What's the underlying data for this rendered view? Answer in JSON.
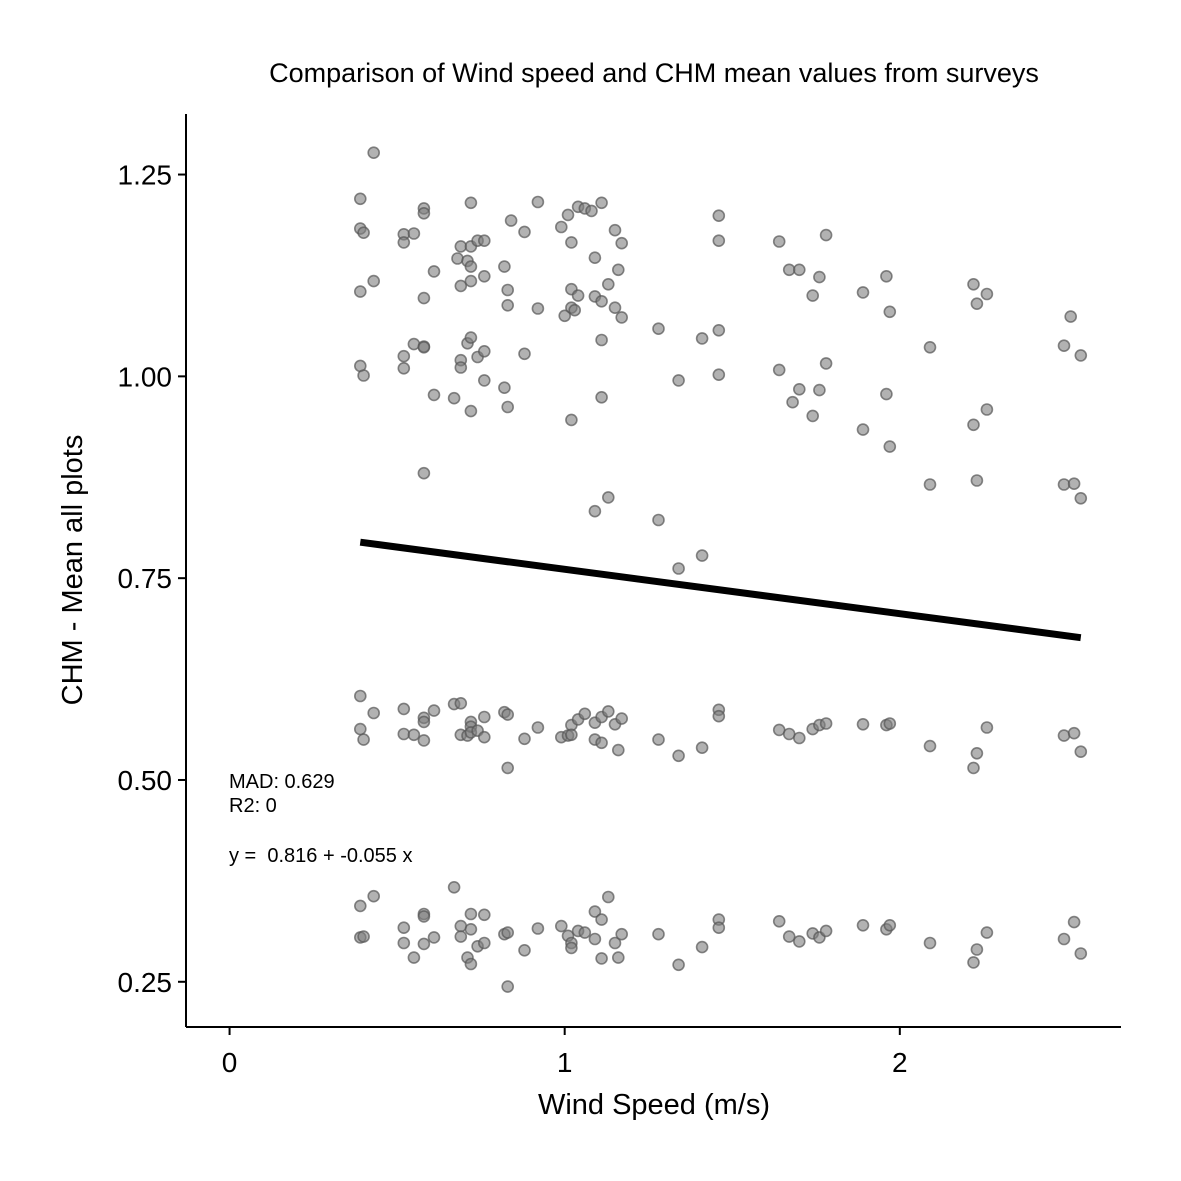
{
  "chart_data": {
    "type": "scatter",
    "title": "Comparison of Wind speed and CHM mean values from surveys",
    "xlabel": "Wind Speed (m/s)",
    "ylabel": "CHM - Mean all plots",
    "xlim": [
      -0.13,
      2.66
    ],
    "ylim": [
      0.194,
      1.325
    ],
    "x_ticks": [
      0,
      1,
      2
    ],
    "x_tick_labels": [
      "0",
      "1",
      "2"
    ],
    "y_ticks": [
      0.25,
      0.5,
      0.75,
      1.0,
      1.25
    ],
    "y_tick_labels": [
      "0.25",
      "0.50",
      "0.75",
      "1.00",
      "1.25"
    ],
    "grid": false,
    "legend": "none",
    "point_color": "#7f7f7f",
    "annotations": {
      "mad": "MAD: 0.629",
      "r2": "R2: 0",
      "equation": "y =  0.816 + -0.055 x"
    },
    "fit_line": {
      "intercept": 0.816,
      "slope": -0.055,
      "x_range": [
        0.39,
        2.54
      ]
    },
    "points": [
      [
        0.39,
        1.22
      ],
      [
        0.39,
        1.183
      ],
      [
        0.4,
        1.178
      ],
      [
        0.39,
        1.105
      ],
      [
        0.43,
        1.277
      ],
      [
        0.43,
        1.118
      ],
      [
        0.52,
        1.176
      ],
      [
        0.52,
        1.166
      ],
      [
        0.55,
        1.177
      ],
      [
        0.58,
        1.208
      ],
      [
        0.58,
        1.202
      ],
      [
        0.58,
        1.097
      ],
      [
        0.61,
        1.13
      ],
      [
        0.68,
        1.146
      ],
      [
        0.69,
        1.161
      ],
      [
        0.69,
        1.112
      ],
      [
        0.72,
        1.215
      ],
      [
        0.71,
        1.143
      ],
      [
        0.72,
        1.136
      ],
      [
        0.72,
        1.161
      ],
      [
        0.72,
        1.118
      ],
      [
        0.74,
        1.168
      ],
      [
        0.76,
        1.168
      ],
      [
        0.76,
        1.124
      ],
      [
        0.82,
        1.136
      ],
      [
        0.83,
        1.107
      ],
      [
        0.83,
        1.088
      ],
      [
        0.84,
        1.193
      ],
      [
        0.88,
        1.179
      ],
      [
        0.92,
        1.216
      ],
      [
        0.92,
        1.084
      ],
      [
        0.99,
        1.185
      ],
      [
        1.01,
        1.2
      ],
      [
        1.02,
        1.166
      ],
      [
        1.02,
        1.108
      ],
      [
        1.04,
        1.1
      ],
      [
        1.04,
        1.21
      ],
      [
        1.06,
        1.208
      ],
      [
        1.08,
        1.205
      ],
      [
        1.09,
        1.147
      ],
      [
        1.09,
        1.099
      ],
      [
        1.11,
        1.215
      ],
      [
        1.11,
        1.093
      ],
      [
        1.13,
        1.114
      ],
      [
        1.15,
        1.181
      ],
      [
        1.15,
        1.085
      ],
      [
        1.16,
        1.132
      ],
      [
        1.17,
        1.165
      ],
      [
        1.17,
        1.073
      ],
      [
        1.0,
        1.075
      ],
      [
        1.02,
        1.085
      ],
      [
        1.03,
        1.082
      ],
      [
        1.46,
        1.199
      ],
      [
        1.46,
        1.168
      ],
      [
        1.64,
        1.167
      ],
      [
        1.67,
        1.132
      ],
      [
        1.7,
        1.132
      ],
      [
        1.74,
        1.1
      ],
      [
        1.76,
        1.123
      ],
      [
        1.78,
        1.175
      ],
      [
        1.89,
        1.104
      ],
      [
        1.96,
        1.124
      ],
      [
        1.97,
        1.08
      ],
      [
        2.22,
        1.114
      ],
      [
        2.23,
        1.09
      ],
      [
        2.26,
        1.102
      ],
      [
        2.51,
        1.074
      ],
      [
        0.39,
        1.013
      ],
      [
        0.4,
        1.001
      ],
      [
        0.52,
        1.025
      ],
      [
        0.52,
        1.01
      ],
      [
        0.55,
        1.04
      ],
      [
        0.58,
        1.037
      ],
      [
        0.58,
        1.036
      ],
      [
        0.61,
        0.977
      ],
      [
        0.67,
        0.973
      ],
      [
        0.69,
        1.02
      ],
      [
        0.69,
        1.011
      ],
      [
        0.71,
        1.041
      ],
      [
        0.72,
        1.048
      ],
      [
        0.72,
        0.957
      ],
      [
        0.74,
        1.024
      ],
      [
        0.76,
        1.031
      ],
      [
        0.76,
        0.995
      ],
      [
        0.82,
        0.986
      ],
      [
        0.83,
        0.962
      ],
      [
        0.88,
        1.028
      ],
      [
        1.02,
        0.946
      ],
      [
        1.11,
        1.045
      ],
      [
        1.11,
        0.974
      ],
      [
        1.28,
        1.059
      ],
      [
        1.34,
        0.995
      ],
      [
        1.41,
        1.047
      ],
      [
        1.46,
        1.057
      ],
      [
        1.46,
        1.002
      ],
      [
        1.64,
        1.008
      ],
      [
        1.68,
        0.968
      ],
      [
        1.7,
        0.984
      ],
      [
        1.74,
        0.951
      ],
      [
        1.76,
        0.983
      ],
      [
        1.78,
        1.016
      ],
      [
        1.89,
        0.934
      ],
      [
        1.96,
        0.978
      ],
      [
        1.97,
        0.913
      ],
      [
        2.09,
        1.036
      ],
      [
        2.22,
        0.94
      ],
      [
        2.26,
        0.959
      ],
      [
        2.49,
        1.038
      ],
      [
        2.54,
        1.026
      ],
      [
        0.58,
        0.88
      ],
      [
        1.09,
        0.833
      ],
      [
        1.13,
        0.85
      ],
      [
        1.28,
        0.822
      ],
      [
        1.34,
        0.762
      ],
      [
        1.41,
        0.778
      ],
      [
        2.09,
        0.866
      ],
      [
        2.23,
        0.871
      ],
      [
        2.49,
        0.866
      ],
      [
        2.52,
        0.867
      ],
      [
        2.54,
        0.849
      ],
      [
        0.39,
        0.604
      ],
      [
        0.39,
        0.563
      ],
      [
        0.4,
        0.55
      ],
      [
        0.43,
        0.583
      ],
      [
        0.52,
        0.588
      ],
      [
        0.52,
        0.557
      ],
      [
        0.55,
        0.556
      ],
      [
        0.58,
        0.577
      ],
      [
        0.58,
        0.572
      ],
      [
        0.58,
        0.549
      ],
      [
        0.61,
        0.586
      ],
      [
        0.67,
        0.594
      ],
      [
        0.69,
        0.595
      ],
      [
        0.69,
        0.556
      ],
      [
        0.71,
        0.555
      ],
      [
        0.72,
        0.572
      ],
      [
        0.72,
        0.566
      ],
      [
        0.72,
        0.559
      ],
      [
        0.74,
        0.561
      ],
      [
        0.76,
        0.578
      ],
      [
        0.76,
        0.553
      ],
      [
        0.82,
        0.584
      ],
      [
        0.83,
        0.581
      ],
      [
        0.83,
        0.515
      ],
      [
        0.88,
        0.551
      ],
      [
        0.92,
        0.565
      ],
      [
        0.99,
        0.553
      ],
      [
        1.01,
        0.555
      ],
      [
        1.02,
        0.568
      ],
      [
        1.02,
        0.556
      ],
      [
        1.04,
        0.575
      ],
      [
        1.06,
        0.582
      ],
      [
        1.09,
        0.571
      ],
      [
        1.09,
        0.55
      ],
      [
        1.11,
        0.578
      ],
      [
        1.11,
        0.546
      ],
      [
        1.13,
        0.585
      ],
      [
        1.15,
        0.569
      ],
      [
        1.16,
        0.537
      ],
      [
        1.17,
        0.576
      ],
      [
        1.28,
        0.55
      ],
      [
        1.34,
        0.53
      ],
      [
        1.41,
        0.54
      ],
      [
        1.46,
        0.587
      ],
      [
        1.46,
        0.579
      ],
      [
        1.64,
        0.562
      ],
      [
        1.67,
        0.557
      ],
      [
        1.7,
        0.552
      ],
      [
        1.74,
        0.563
      ],
      [
        1.76,
        0.568
      ],
      [
        1.78,
        0.57
      ],
      [
        1.89,
        0.569
      ],
      [
        1.96,
        0.568
      ],
      [
        1.97,
        0.57
      ],
      [
        2.09,
        0.542
      ],
      [
        2.22,
        0.515
      ],
      [
        2.23,
        0.533
      ],
      [
        2.26,
        0.565
      ],
      [
        2.49,
        0.555
      ],
      [
        2.52,
        0.558
      ],
      [
        2.54,
        0.535
      ],
      [
        0.39,
        0.344
      ],
      [
        0.39,
        0.305
      ],
      [
        0.4,
        0.306
      ],
      [
        0.43,
        0.356
      ],
      [
        0.52,
        0.317
      ],
      [
        0.52,
        0.298
      ],
      [
        0.55,
        0.28
      ],
      [
        0.58,
        0.334
      ],
      [
        0.58,
        0.331
      ],
      [
        0.58,
        0.297
      ],
      [
        0.61,
        0.305
      ],
      [
        0.67,
        0.367
      ],
      [
        0.69,
        0.319
      ],
      [
        0.69,
        0.306
      ],
      [
        0.71,
        0.28
      ],
      [
        0.72,
        0.334
      ],
      [
        0.72,
        0.315
      ],
      [
        0.72,
        0.272
      ],
      [
        0.74,
        0.294
      ],
      [
        0.76,
        0.333
      ],
      [
        0.76,
        0.298
      ],
      [
        0.82,
        0.309
      ],
      [
        0.83,
        0.311
      ],
      [
        0.83,
        0.244
      ],
      [
        0.88,
        0.289
      ],
      [
        0.92,
        0.316
      ],
      [
        0.99,
        0.319
      ],
      [
        1.01,
        0.307
      ],
      [
        1.02,
        0.298
      ],
      [
        1.02,
        0.292
      ],
      [
        1.04,
        0.313
      ],
      [
        1.06,
        0.311
      ],
      [
        1.09,
        0.337
      ],
      [
        1.09,
        0.303
      ],
      [
        1.11,
        0.327
      ],
      [
        1.11,
        0.279
      ],
      [
        1.13,
        0.355
      ],
      [
        1.15,
        0.298
      ],
      [
        1.16,
        0.28
      ],
      [
        1.17,
        0.309
      ],
      [
        1.28,
        0.309
      ],
      [
        1.34,
        0.271
      ],
      [
        1.41,
        0.293
      ],
      [
        1.46,
        0.327
      ],
      [
        1.46,
        0.317
      ],
      [
        1.64,
        0.325
      ],
      [
        1.67,
        0.306
      ],
      [
        1.7,
        0.3
      ],
      [
        1.74,
        0.31
      ],
      [
        1.76,
        0.305
      ],
      [
        1.78,
        0.313
      ],
      [
        1.89,
        0.32
      ],
      [
        1.96,
        0.315
      ],
      [
        1.97,
        0.32
      ],
      [
        2.09,
        0.298
      ],
      [
        2.22,
        0.274
      ],
      [
        2.23,
        0.29
      ],
      [
        2.26,
        0.311
      ],
      [
        2.49,
        0.303
      ],
      [
        2.52,
        0.324
      ],
      [
        2.54,
        0.285
      ]
    ]
  }
}
